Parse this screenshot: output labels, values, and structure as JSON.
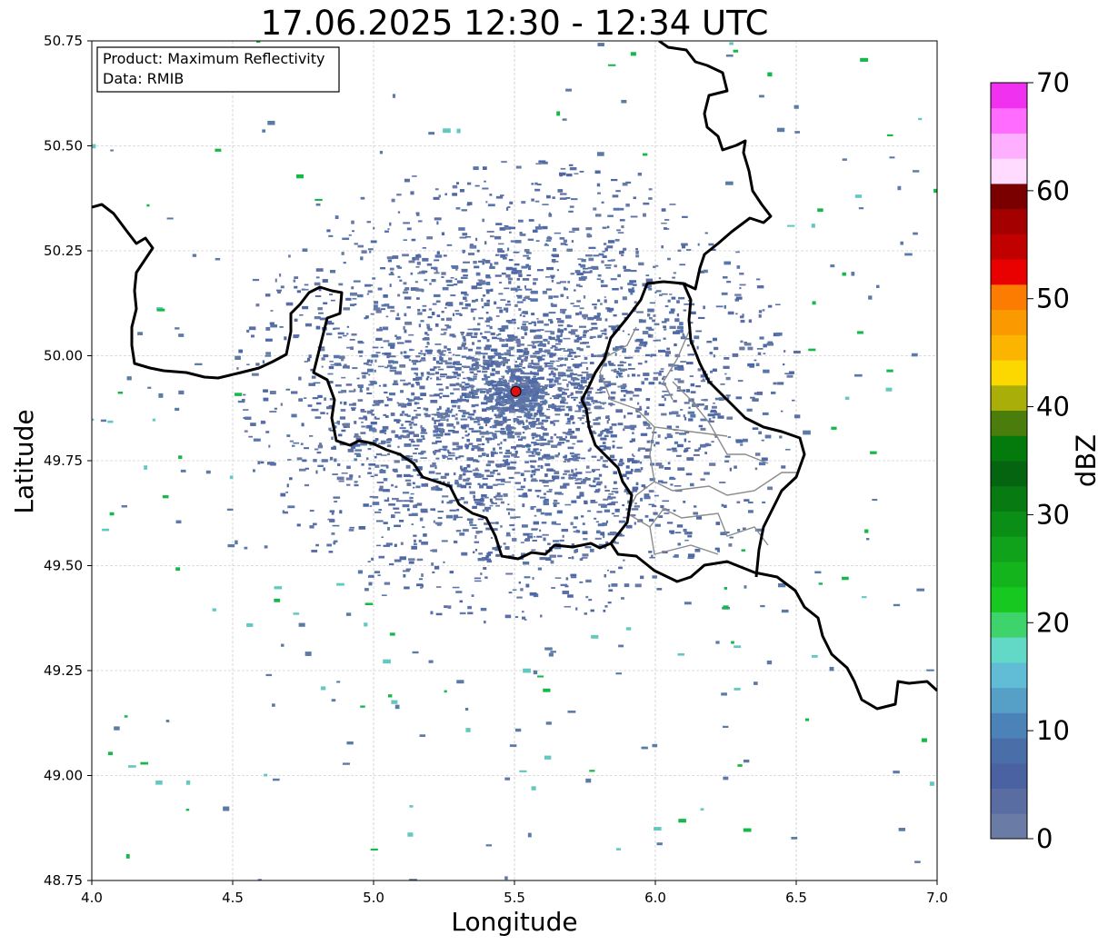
{
  "title": "17.06.2025 12:30 - 12:34 UTC",
  "info_box": {
    "product": "Product: Maximum Reflectivity",
    "source": "Data: RMIB"
  },
  "axes": {
    "xlabel": "Longitude",
    "ylabel": "Latitude",
    "xlim": [
      4.0,
      7.0
    ],
    "ylim": [
      48.75,
      50.75
    ],
    "xticks": [
      "4.0",
      "4.5",
      "5.0",
      "5.5",
      "6.0",
      "6.5",
      "7.0"
    ],
    "yticks": [
      "48.75",
      "49.00",
      "49.25",
      "49.50",
      "49.75",
      "50.00",
      "50.25",
      "50.50",
      "50.75"
    ],
    "grid": true
  },
  "radar_site": {
    "lon": 5.505,
    "lat": 49.915,
    "color": "#e01010"
  },
  "colorbar": {
    "label": "dBZ",
    "range": [
      0,
      70
    ],
    "ticks": [
      "0",
      "10",
      "20",
      "30",
      "40",
      "50",
      "60",
      "70"
    ],
    "colors": [
      "#6a7ba6",
      "#5a6da3",
      "#4a62a2",
      "#4a6fa8",
      "#4b83b8",
      "#569fc6",
      "#61bdd6",
      "#62d8c6",
      "#3ed36b",
      "#16c81f",
      "#14b41c",
      "#10a21a",
      "#0b8e15",
      "#087a12",
      "#056410",
      "#047a0c",
      "#4a7d0c",
      "#a9ae08",
      "#fcd700",
      "#fbb400",
      "#fb9a00",
      "#fb7c00",
      "#e90000",
      "#c10000",
      "#a40000",
      "#7a0000",
      "#ffdcff",
      "#ffafff",
      "#ff6cff",
      "#f032f0"
    ]
  }
}
